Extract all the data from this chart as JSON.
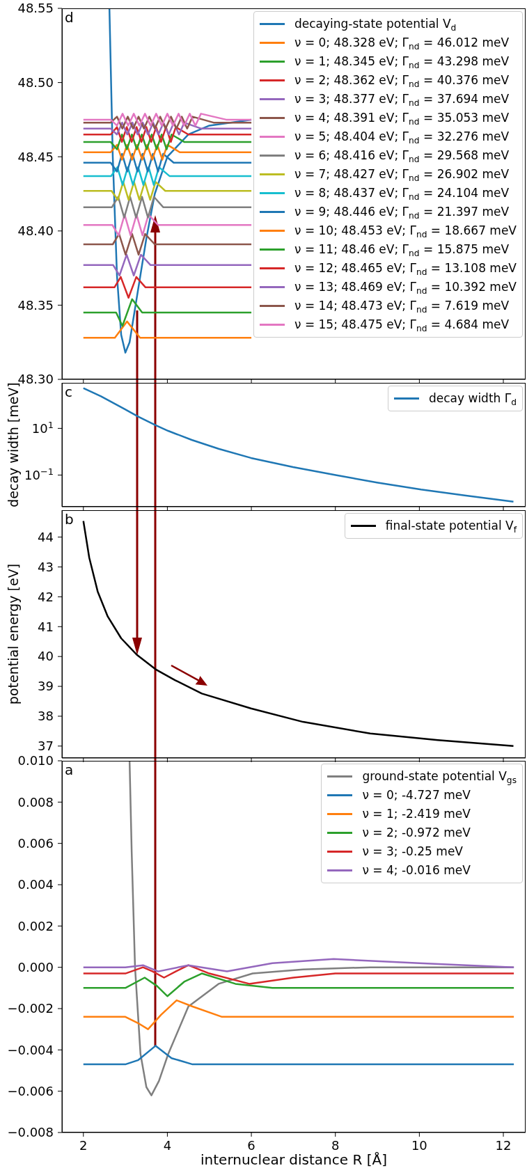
{
  "chart_data": [
    {
      "type": "line",
      "annotations": [
        "d"
      ],
      "xlim": [
        1.49,
        12.53
      ],
      "xticks": [
        2,
        4,
        6,
        8,
        10,
        12
      ],
      "ylim": [
        48.3,
        48.55
      ],
      "yticks": [
        {
          "value": 48.3,
          "label": "48.30"
        },
        48.35,
        {
          "value": 48.4,
          "label": "48.40"
        },
        48.45,
        {
          "value": 48.5,
          "label": "48.50"
        },
        48.55
      ],
      "tick_labels": "y",
      "legend": "top right",
      "series": [
        {
          "name": "decaying-state potential V$_{d}$",
          "color": "#1f77b4",
          "x": [
            2.62,
            2.7,
            2.8,
            2.9,
            3.0,
            3.1,
            3.3,
            3.5,
            3.7,
            4.0,
            4.5,
            5,
            6
          ],
          "values": [
            48.55,
            48.45,
            48.37,
            48.33,
            48.318,
            48.325,
            48.36,
            48.395,
            48.425,
            48.45,
            48.465,
            48.471,
            48.475
          ]
        },
        {
          "name": "ν = 0; 48.328 eV; Γ$_{nd}$ = 46.012 meV",
          "color": "#ff7f0e",
          "x": [
            2,
            2.75,
            3.04,
            3.35,
            6
          ],
          "values": [
            48.328,
            48.328,
            48.339,
            48.328,
            48.328
          ]
        },
        {
          "name": "ν = 1; 48.345 eV; Γ$_{nd}$ = 43.298 meV",
          "color": "#2ca02c",
          "x": [
            2,
            2.78,
            2.93,
            3.16,
            3.4,
            6
          ],
          "values": [
            48.345,
            48.345,
            48.336,
            48.354,
            48.345,
            48.345
          ]
        },
        {
          "name": "ν = 2; 48.362 eV; Γ$_{nd}$ = 40.376 meV",
          "color": "#d62728",
          "x": [
            2,
            2.74,
            2.89,
            3.075,
            3.26,
            3.48,
            6
          ],
          "values": [
            48.362,
            48.362,
            48.369,
            48.355,
            48.369,
            48.362,
            48.362
          ]
        },
        {
          "name": "ν = 3; 48.377 eV; Γ$_{nd}$ = 37.694 meV",
          "color": "#9467bd",
          "x": [
            2,
            2.71,
            2.86,
            3.03,
            3.2,
            3.37,
            3.6,
            6
          ],
          "values": [
            48.377,
            48.377,
            48.37,
            48.384,
            48.37,
            48.384,
            48.377,
            48.377
          ]
        },
        {
          "name": "ν = 4; 48.391 eV; Γ$_{nd}$ = 35.053 meV",
          "color": "#8c564b",
          "x": [
            2,
            2.7,
            2.85,
            3.005,
            3.16,
            3.315,
            3.47,
            3.7,
            6
          ],
          "values": [
            48.391,
            48.391,
            48.398,
            48.384,
            48.398,
            48.384,
            48.398,
            48.391,
            48.391
          ]
        },
        {
          "name": "ν = 5; 48.404 eV; Γ$_{nd}$ = 32.276 meV",
          "color": "#e377c2",
          "x": [
            2,
            2.69,
            2.84,
            2.982,
            3.124,
            3.266,
            3.408,
            3.55,
            3.78,
            6
          ],
          "values": [
            48.404,
            48.404,
            48.397,
            48.411,
            48.397,
            48.411,
            48.397,
            48.411,
            48.404,
            48.404
          ]
        },
        {
          "name": "ν = 6; 48.416 eV; Γ$_{nd}$ = 29.568 meV",
          "color": "#7f7f7f",
          "x": [
            2,
            2.68,
            2.83,
            2.972,
            3.113,
            3.255,
            3.397,
            3.538,
            3.68,
            3.9,
            6
          ],
          "values": [
            48.416,
            48.416,
            48.423,
            48.409,
            48.423,
            48.409,
            48.423,
            48.409,
            48.423,
            48.416,
            48.416
          ]
        },
        {
          "name": "ν = 7; 48.427 eV; Γ$_{nd}$ = 26.902 meV",
          "color": "#bcbd22",
          "x": [
            2,
            2.67,
            2.82,
            2.949,
            3.077,
            3.206,
            3.334,
            3.463,
            3.591,
            3.72,
            3.95,
            6
          ],
          "values": [
            48.427,
            48.427,
            48.421,
            48.433,
            48.421,
            48.433,
            48.421,
            48.433,
            48.421,
            48.433,
            48.427,
            48.427
          ]
        },
        {
          "name": "ν = 8; 48.437 eV; Γ$_{nd}$ = 24.104 meV",
          "color": "#17becf",
          "x": [
            2,
            2.66,
            2.81,
            2.934,
            3.058,
            3.181,
            3.305,
            3.429,
            3.553,
            3.676,
            3.8,
            4.05,
            6
          ],
          "values": [
            48.437,
            48.437,
            48.443,
            48.431,
            48.443,
            48.431,
            48.443,
            48.431,
            48.443,
            48.431,
            48.443,
            48.437,
            48.437
          ]
        },
        {
          "name": "ν = 9; 48.446 eV; Γ$_{nd}$ = 21.397 meV",
          "color": "#1f77b4",
          "x": [
            2,
            2.65,
            2.8,
            2.922,
            3.044,
            3.167,
            3.289,
            3.411,
            3.533,
            3.656,
            3.778,
            3.9,
            4.15,
            6
          ],
          "values": [
            48.446,
            48.446,
            48.44,
            48.452,
            48.44,
            48.452,
            48.44,
            48.452,
            48.44,
            48.452,
            48.44,
            48.452,
            48.446,
            48.446
          ]
        },
        {
          "name": "ν = 10; 48.453 eV; Γ$_{nd}$ = 18.667 meV",
          "color": "#ff7f0e",
          "x": [
            2,
            2.65,
            2.8,
            2.92,
            3.04,
            3.16,
            3.28,
            3.4,
            3.52,
            3.64,
            3.76,
            3.88,
            4.0,
            4.3,
            6
          ],
          "values": [
            48.453,
            48.453,
            48.458,
            48.448,
            48.458,
            48.448,
            48.458,
            48.448,
            48.458,
            48.448,
            48.458,
            48.448,
            48.458,
            48.453,
            48.453
          ]
        },
        {
          "name": "ν = 11; 48.46 eV; Γ$_{nd}$ = 15.875 meV",
          "color": "#2ca02c",
          "x": [
            2,
            2.65,
            2.8,
            2.918,
            3.036,
            3.155,
            3.273,
            3.391,
            3.509,
            3.627,
            3.745,
            3.864,
            3.982,
            4.1,
            4.4,
            6
          ],
          "values": [
            48.46,
            48.46,
            48.455,
            48.465,
            48.455,
            48.465,
            48.455,
            48.465,
            48.455,
            48.465,
            48.455,
            48.465,
            48.455,
            48.465,
            48.46,
            48.46
          ]
        },
        {
          "name": "ν = 12; 48.465 eV; Γ$_{nd}$ = 13.108 meV",
          "color": "#d62728",
          "x": [
            2,
            2.65,
            2.8,
            2.917,
            3.033,
            3.15,
            3.267,
            3.383,
            3.5,
            3.617,
            3.733,
            3.85,
            3.967,
            4.083,
            4.2,
            4.5,
            6
          ],
          "values": [
            48.465,
            48.465,
            48.47,
            48.46,
            48.47,
            48.46,
            48.47,
            48.46,
            48.47,
            48.46,
            48.47,
            48.46,
            48.47,
            48.46,
            48.47,
            48.465,
            48.465
          ]
        },
        {
          "name": "ν = 13; 48.469 eV; Γ$_{nd}$ = 10.392 meV",
          "color": "#9467bd",
          "x": [
            2,
            2.65,
            2.8,
            2.923,
            3.046,
            3.169,
            3.292,
            3.415,
            3.538,
            3.662,
            3.785,
            3.908,
            4.031,
            4.154,
            4.277,
            4.4,
            4.8,
            6
          ],
          "values": [
            48.469,
            48.469,
            48.465,
            48.473,
            48.465,
            48.473,
            48.465,
            48.473,
            48.465,
            48.473,
            48.465,
            48.473,
            48.465,
            48.473,
            48.465,
            48.473,
            48.469,
            48.469
          ]
        },
        {
          "name": "ν = 14; 48.473 eV; Γ$_{nd}$ = 7.619 meV",
          "color": "#8c564b",
          "x": [
            2,
            2.65,
            2.8,
            2.929,
            3.057,
            3.186,
            3.314,
            3.443,
            3.571,
            3.7,
            3.829,
            3.957,
            4.086,
            4.214,
            4.343,
            4.471,
            4.6,
            5.1,
            6
          ],
          "values": [
            48.473,
            48.473,
            48.477,
            48.469,
            48.477,
            48.469,
            48.477,
            48.469,
            48.477,
            48.469,
            48.477,
            48.469,
            48.477,
            48.469,
            48.477,
            48.469,
            48.477,
            48.473,
            48.473
          ]
        },
        {
          "name": "ν = 15; 48.475 eV; Γ$_{nd}$ = 4.684 meV",
          "color": "#e377c2",
          "x": [
            2,
            2.65,
            2.8,
            2.933,
            3.067,
            3.2,
            3.333,
            3.467,
            3.6,
            3.733,
            3.867,
            4.0,
            4.133,
            4.267,
            4.4,
            4.533,
            4.667,
            4.8,
            5.4,
            6
          ],
          "values": [
            48.475,
            48.475,
            48.471,
            48.479,
            48.471,
            48.479,
            48.471,
            48.479,
            48.471,
            48.479,
            48.471,
            48.479,
            48.471,
            48.479,
            48.471,
            48.479,
            48.471,
            48.479,
            48.475,
            48.475
          ]
        }
      ]
    },
    {
      "type": "line",
      "annotations": [
        "c"
      ],
      "ylabel": "decay width [meV]",
      "log": true,
      "xlim": [
        1.49,
        12.53
      ],
      "xticks": [
        2,
        4,
        6,
        8,
        10,
        12
      ],
      "ylim": [
        0.0044,
        890
      ],
      "yticks": [
        {
          "value": 10,
          "label": "10$^{1}$"
        },
        {
          "value": 0.1,
          "label": "10$^{−1}$"
        }
      ],
      "tick_labels": "y",
      "legend": "top right",
      "series": [
        {
          "name": "decay width Γ$_{d}$",
          "color": "#1f77b4",
          "x": [
            2,
            2.42,
            2.98,
            3.3,
            3.72,
            4.02,
            4.58,
            5.22,
            5.99,
            6.99,
            8.03,
            8.99,
            10.04,
            11.08,
            12.24
          ],
          "values": [
            525,
            236,
            67,
            32,
            13.6,
            7.8,
            3.2,
            1.33,
            0.54,
            0.22,
            0.098,
            0.048,
            0.024,
            0.0135,
            0.0072
          ]
        }
      ]
    },
    {
      "type": "line",
      "annotations": [
        "b"
      ],
      "ylabel": "potential energy [eV]",
      "xlim": [
        1.49,
        12.53
      ],
      "xticks": [
        2,
        4,
        6,
        8,
        10,
        12
      ],
      "ylim": [
        36.6,
        44.9
      ],
      "yticks": [
        37,
        38,
        39,
        40,
        41,
        42,
        43,
        44
      ],
      "tick_labels": "y",
      "legend": "top right",
      "series": [
        {
          "name": "final-state potential V$_{f}$",
          "color": "#000000",
          "x": [
            2,
            2.14,
            2.34,
            2.58,
            2.9,
            3.28,
            3.72,
            4.18,
            4.82,
            5.99,
            7.23,
            8.83,
            10.44,
            12.24
          ],
          "values": [
            44.54,
            43.31,
            42.18,
            41.34,
            40.61,
            40.05,
            39.57,
            39.21,
            38.76,
            38.26,
            37.81,
            37.42,
            37.2,
            37.0
          ]
        }
      ]
    },
    {
      "type": "line",
      "annotations": [
        "a"
      ],
      "xlabel": "internuclear distance R [Å]",
      "xlim": [
        1.49,
        12.53
      ],
      "xticks": [
        2,
        4,
        6,
        8,
        10,
        12
      ],
      "ylim": [
        -0.008,
        0.01
      ],
      "yticks": [
        {
          "value": -0.008,
          "label": "−0.008"
        },
        {
          "value": -0.006,
          "label": "−0.006"
        },
        {
          "value": -0.004,
          "label": "−0.004"
        },
        {
          "value": -0.002,
          "label": "−0.002"
        },
        {
          "value": 0,
          "label": "0.000"
        },
        0.002,
        0.004,
        0.006,
        0.008,
        {
          "value": 0.01,
          "label": "0.010"
        }
      ],
      "legend": "top right",
      "series": [
        {
          "name": "ground-state potential V$_{gs}$",
          "color": "#7f7f7f",
          "x": [
            3.1,
            3.15,
            3.23,
            3.36,
            3.5,
            3.62,
            3.8,
            4.02,
            4.5,
            5.22,
            6.03,
            7.23,
            8.83,
            12.25
          ],
          "values": [
            0.01,
            0.0056,
            0,
            -0.0042,
            -0.0058,
            -0.0062,
            -0.0055,
            -0.0042,
            -0.0019,
            -0.0008,
            -0.0003,
            -0.0001,
            0,
            0
          ]
        },
        {
          "name": "ν = 0; -4.727 meV",
          "color": "#1f77b4",
          "x": [
            2,
            3.0,
            3.3,
            3.72,
            4.1,
            4.6,
            12.25
          ],
          "values": [
            -0.0047,
            -0.0047,
            -0.0045,
            -0.0038,
            -0.0044,
            -0.0047,
            -0.0047
          ]
        },
        {
          "name": "ν = 1; -2.419 meV",
          "color": "#ff7f0e",
          "x": [
            2,
            3.0,
            3.3,
            3.54,
            3.85,
            4.22,
            4.6,
            5.3,
            12.25
          ],
          "values": [
            -0.0024,
            -0.0024,
            -0.0027,
            -0.003,
            -0.0023,
            -0.0016,
            -0.0019,
            -0.0024,
            -0.0024
          ]
        },
        {
          "name": "ν = 2; -0.972 meV",
          "color": "#2ca02c",
          "x": [
            2,
            3.0,
            3.46,
            3.75,
            4.0,
            4.4,
            4.82,
            5.62,
            6.5,
            12.25
          ],
          "values": [
            -0.001,
            -0.001,
            -0.0005,
            -0.0009,
            -0.0014,
            -0.0007,
            -0.0003,
            -0.0008,
            -0.001,
            -0.001
          ]
        },
        {
          "name": "ν = 3; -0.25 meV",
          "color": "#d62728",
          "x": [
            2,
            3.0,
            3.42,
            3.65,
            3.92,
            4.2,
            4.5,
            5.0,
            5.95,
            7,
            8,
            10,
            12.25
          ],
          "values": [
            -0.0003,
            -0.0003,
            0,
            -0.0002,
            -0.0005,
            -0.0002,
            0.0001,
            -0.0003,
            -0.0008,
            -0.0005,
            -0.0003,
            -0.0003,
            -0.0003
          ]
        },
        {
          "name": "ν = 4; -0.016 meV",
          "color": "#9467bd",
          "x": [
            2,
            3.0,
            3.42,
            3.78,
            4.5,
            5.42,
            6.5,
            7.96,
            10,
            12.25
          ],
          "values": [
            0,
            0,
            0.0001,
            -0.0002,
            0.0001,
            -0.0002,
            0.0002,
            0.0004,
            0.0002,
            0
          ]
        }
      ]
    }
  ]
}
